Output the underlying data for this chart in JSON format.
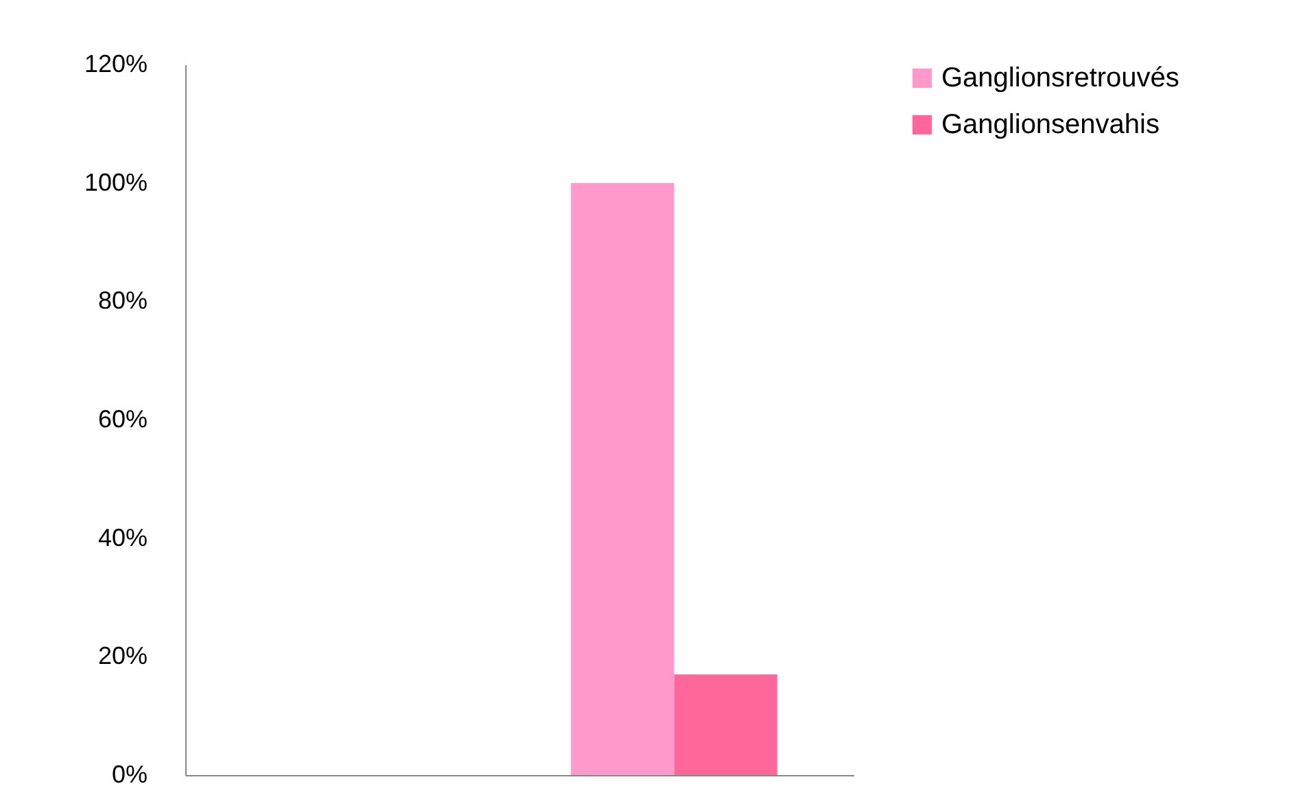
{
  "chart_data": {
    "type": "bar",
    "categories": [
      null,
      null
    ],
    "series": [
      {
        "name": "Ganglionsretrouvés",
        "color": "#ff99cc",
        "values": [
          null,
          100
        ]
      },
      {
        "name": "Ganglionsenvahis",
        "color": "#ff6699",
        "values": [
          null,
          17
        ]
      }
    ],
    "ylim": [
      0,
      120
    ],
    "yticks": [
      {
        "value": 0,
        "label": "0%"
      },
      {
        "value": 20,
        "label": "20%"
      },
      {
        "value": 40,
        "label": "40%"
      },
      {
        "value": 60,
        "label": "60%"
      },
      {
        "value": 80,
        "label": "80%"
      },
      {
        "value": 100,
        "label": "100%"
      },
      {
        "value": 120,
        "label": "120%"
      }
    ],
    "grid": false,
    "legend": "right"
  }
}
